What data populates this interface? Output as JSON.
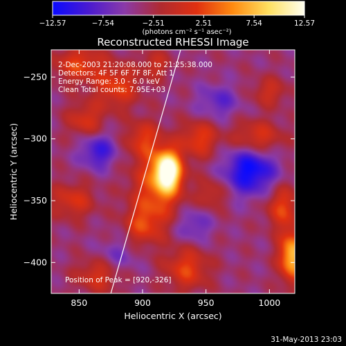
{
  "chart_data": {
    "type": "heatmap",
    "title": "Reconstructed RHESSI Image",
    "xlabel": "Heliocentric X (arcsec)",
    "ylabel": "Heliocentric Y (arcsec)",
    "xlim": [
      828,
      1020
    ],
    "ylim": [
      -425,
      -228
    ],
    "xticks": [
      850,
      900,
      950,
      1000
    ],
    "yticks": [
      -250,
      -300,
      -350,
      -400
    ],
    "xtick_labels": [
      "850",
      "900",
      "950",
      "1000"
    ],
    "ytick_labels": [
      "−250",
      "−300",
      "−350",
      "−400"
    ],
    "colorbar": {
      "ticks": [
        -12.57,
        -7.54,
        -2.51,
        2.51,
        7.54,
        12.57
      ],
      "tick_labels": [
        "−12.57",
        "−7.54",
        "−2.51",
        "2.51",
        "7.54",
        "12.57"
      ],
      "unit_label": "(photons cm⁻² s⁻¹ asec⁻²)",
      "range": [
        -12.57,
        12.57
      ],
      "stops": [
        "#0a0aff",
        "#4a1ad0",
        "#8a3aa8",
        "#b02a30",
        "#e03010",
        "#ff8a10",
        "#ffe060",
        "#fffff0"
      ]
    },
    "annotations": {
      "time_range": "2-Dec-2003 21:20:08.000 to 21:25:38.000",
      "detectors": "Detectors: 4F 5F 6F 7F 8F, Att 1",
      "energy_range": "Energy Range: 3.0 - 6.0 keV",
      "clean_counts": "Clean    Total counts: 7.95E+03",
      "peak_position": "Position of Peak = [920,-326]"
    },
    "peak": {
      "x": 920,
      "y": -326
    },
    "limb_line": [
      {
        "x": 930,
        "y": -228
      },
      {
        "x": 875,
        "y": -425
      }
    ],
    "sources": [
      {
        "x": 920,
        "y": -326,
        "amp": 16,
        "sx": 7,
        "sy": 11
      },
      {
        "x": 912,
        "y": -338,
        "amp": 7,
        "sx": 14,
        "sy": 22
      },
      {
        "x": 900,
        "y": -370,
        "amp": 5,
        "sx": 10,
        "sy": 12
      },
      {
        "x": 850,
        "y": -240,
        "amp": 6,
        "sx": 14,
        "sy": 10
      },
      {
        "x": 880,
        "y": -258,
        "amp": 6,
        "sx": 12,
        "sy": 12
      },
      {
        "x": 910,
        "y": -240,
        "amp": 4,
        "sx": 8,
        "sy": 8
      },
      {
        "x": 900,
        "y": -300,
        "amp": 5,
        "sx": 9,
        "sy": 10
      },
      {
        "x": 855,
        "y": -285,
        "amp": 5,
        "sx": 10,
        "sy": 10
      },
      {
        "x": 845,
        "y": -350,
        "amp": 5,
        "sx": 12,
        "sy": 10
      },
      {
        "x": 865,
        "y": -410,
        "amp": 5,
        "sx": 12,
        "sy": 10
      },
      {
        "x": 945,
        "y": -300,
        "amp": 6,
        "sx": 10,
        "sy": 10
      },
      {
        "x": 955,
        "y": -345,
        "amp": 4,
        "sx": 8,
        "sy": 9
      },
      {
        "x": 935,
        "y": -405,
        "amp": 6,
        "sx": 12,
        "sy": 12
      },
      {
        "x": 990,
        "y": -300,
        "amp": 6,
        "sx": 14,
        "sy": 10
      },
      {
        "x": 1010,
        "y": -355,
        "amp": 6,
        "sx": 9,
        "sy": 12
      },
      {
        "x": 1018,
        "y": -395,
        "amp": 12,
        "sx": 7,
        "sy": 14
      },
      {
        "x": 1000,
        "y": -262,
        "amp": 4,
        "sx": 10,
        "sy": 8
      },
      {
        "x": 865,
        "y": -310,
        "amp": -6,
        "sx": 10,
        "sy": 10
      },
      {
        "x": 960,
        "y": -270,
        "amp": -4,
        "sx": 12,
        "sy": 10
      },
      {
        "x": 985,
        "y": -325,
        "amp": -9,
        "sx": 14,
        "sy": 14
      },
      {
        "x": 940,
        "y": -370,
        "amp": -4,
        "sx": 10,
        "sy": 10
      },
      {
        "x": 880,
        "y": -395,
        "amp": -3,
        "sx": 12,
        "sy": 10
      }
    ]
  },
  "timestamp": "31-May-2013 23:03"
}
